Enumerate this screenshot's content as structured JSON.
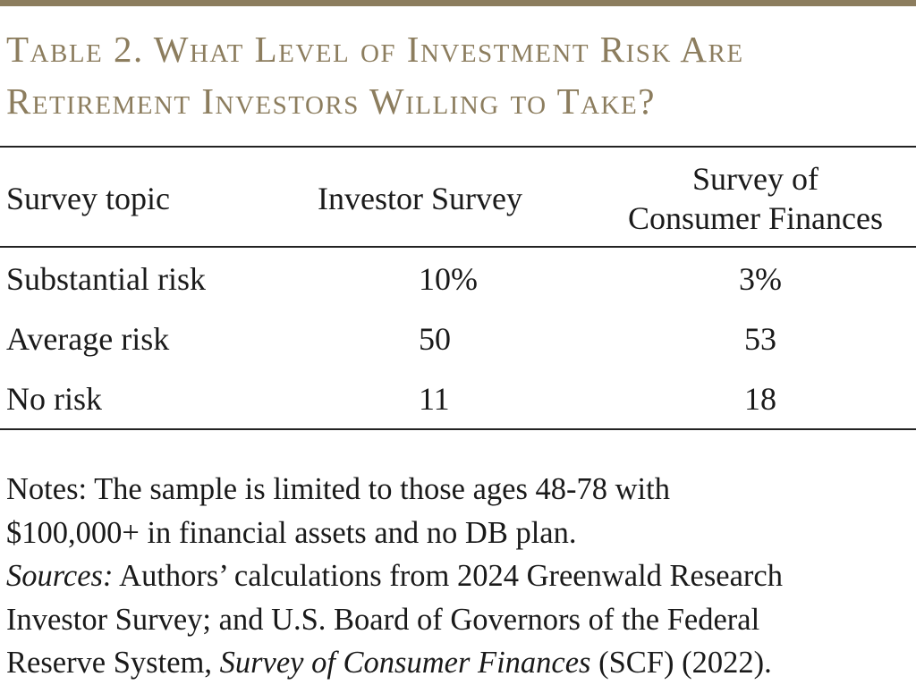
{
  "title": {
    "line1": "Table 2. What Level of Investment Risk Are",
    "line2": "Retirement Investors Willing to Take?"
  },
  "table": {
    "headers": {
      "topic": "Survey topic",
      "investor": "Investor Survey",
      "scf_line1": "Survey of",
      "scf_line2": "Consumer Finances"
    },
    "rows": [
      {
        "label": "Substantial risk",
        "investor": "10%",
        "scf": "3%"
      },
      {
        "label": "Average risk",
        "investor": "50",
        "scf": "53"
      },
      {
        "label": "No risk",
        "investor": "11",
        "scf": "18"
      }
    ]
  },
  "notes": {
    "line1": "Notes: The sample is limited to those ages 48-78 with",
    "line2": "$100,000+ in financial assets and no DB plan.",
    "sources_label": "Sources:",
    "sources_text1": " Authors’ calculations from 2024 Greenwald Research",
    "sources_text2": "Investor Survey; and U.S. Board of Governors of the Federal",
    "sources_text3": "Reserve System, ",
    "sources_italic": "Survey of Consumer Finances",
    "sources_text4": " (SCF) (2022)."
  },
  "colors": {
    "accent": "#8c7d5e",
    "text": "#1a1a1a",
    "rule": "#222222"
  }
}
